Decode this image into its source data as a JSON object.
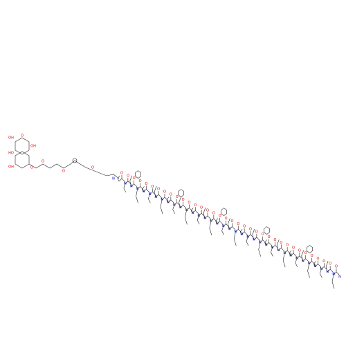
{
  "sugar": {
    "labels": [
      "OH",
      "HO",
      "OH",
      "OH",
      "O",
      "O"
    ]
  },
  "linker": {
    "labels": [
      "O",
      "O",
      "O",
      "N"
    ]
  },
  "peptide": {
    "carbonyl_labels": [
      "O",
      "O",
      "O",
      "O",
      "O",
      "O",
      "O",
      "O",
      "O",
      "O",
      "O",
      "O",
      "O",
      "O",
      "O",
      "O",
      "O",
      "O",
      "O",
      "O",
      "O",
      "O",
      "O",
      "O",
      "O",
      "O",
      "O",
      "O",
      "O",
      "O",
      "O",
      "O",
      "O",
      "O",
      "O",
      "O"
    ],
    "amide_labels": [
      "N",
      "N",
      "N",
      "N",
      "N",
      "N",
      "N",
      "N",
      "N",
      "N",
      "N",
      "N",
      "N",
      "N",
      "N",
      "N",
      "N",
      "N",
      "N",
      "N",
      "N",
      "N",
      "N",
      "N",
      "N",
      "N",
      "N",
      "N",
      "N",
      "N",
      "N",
      "N",
      "N",
      "N",
      "N",
      "N"
    ]
  }
}
